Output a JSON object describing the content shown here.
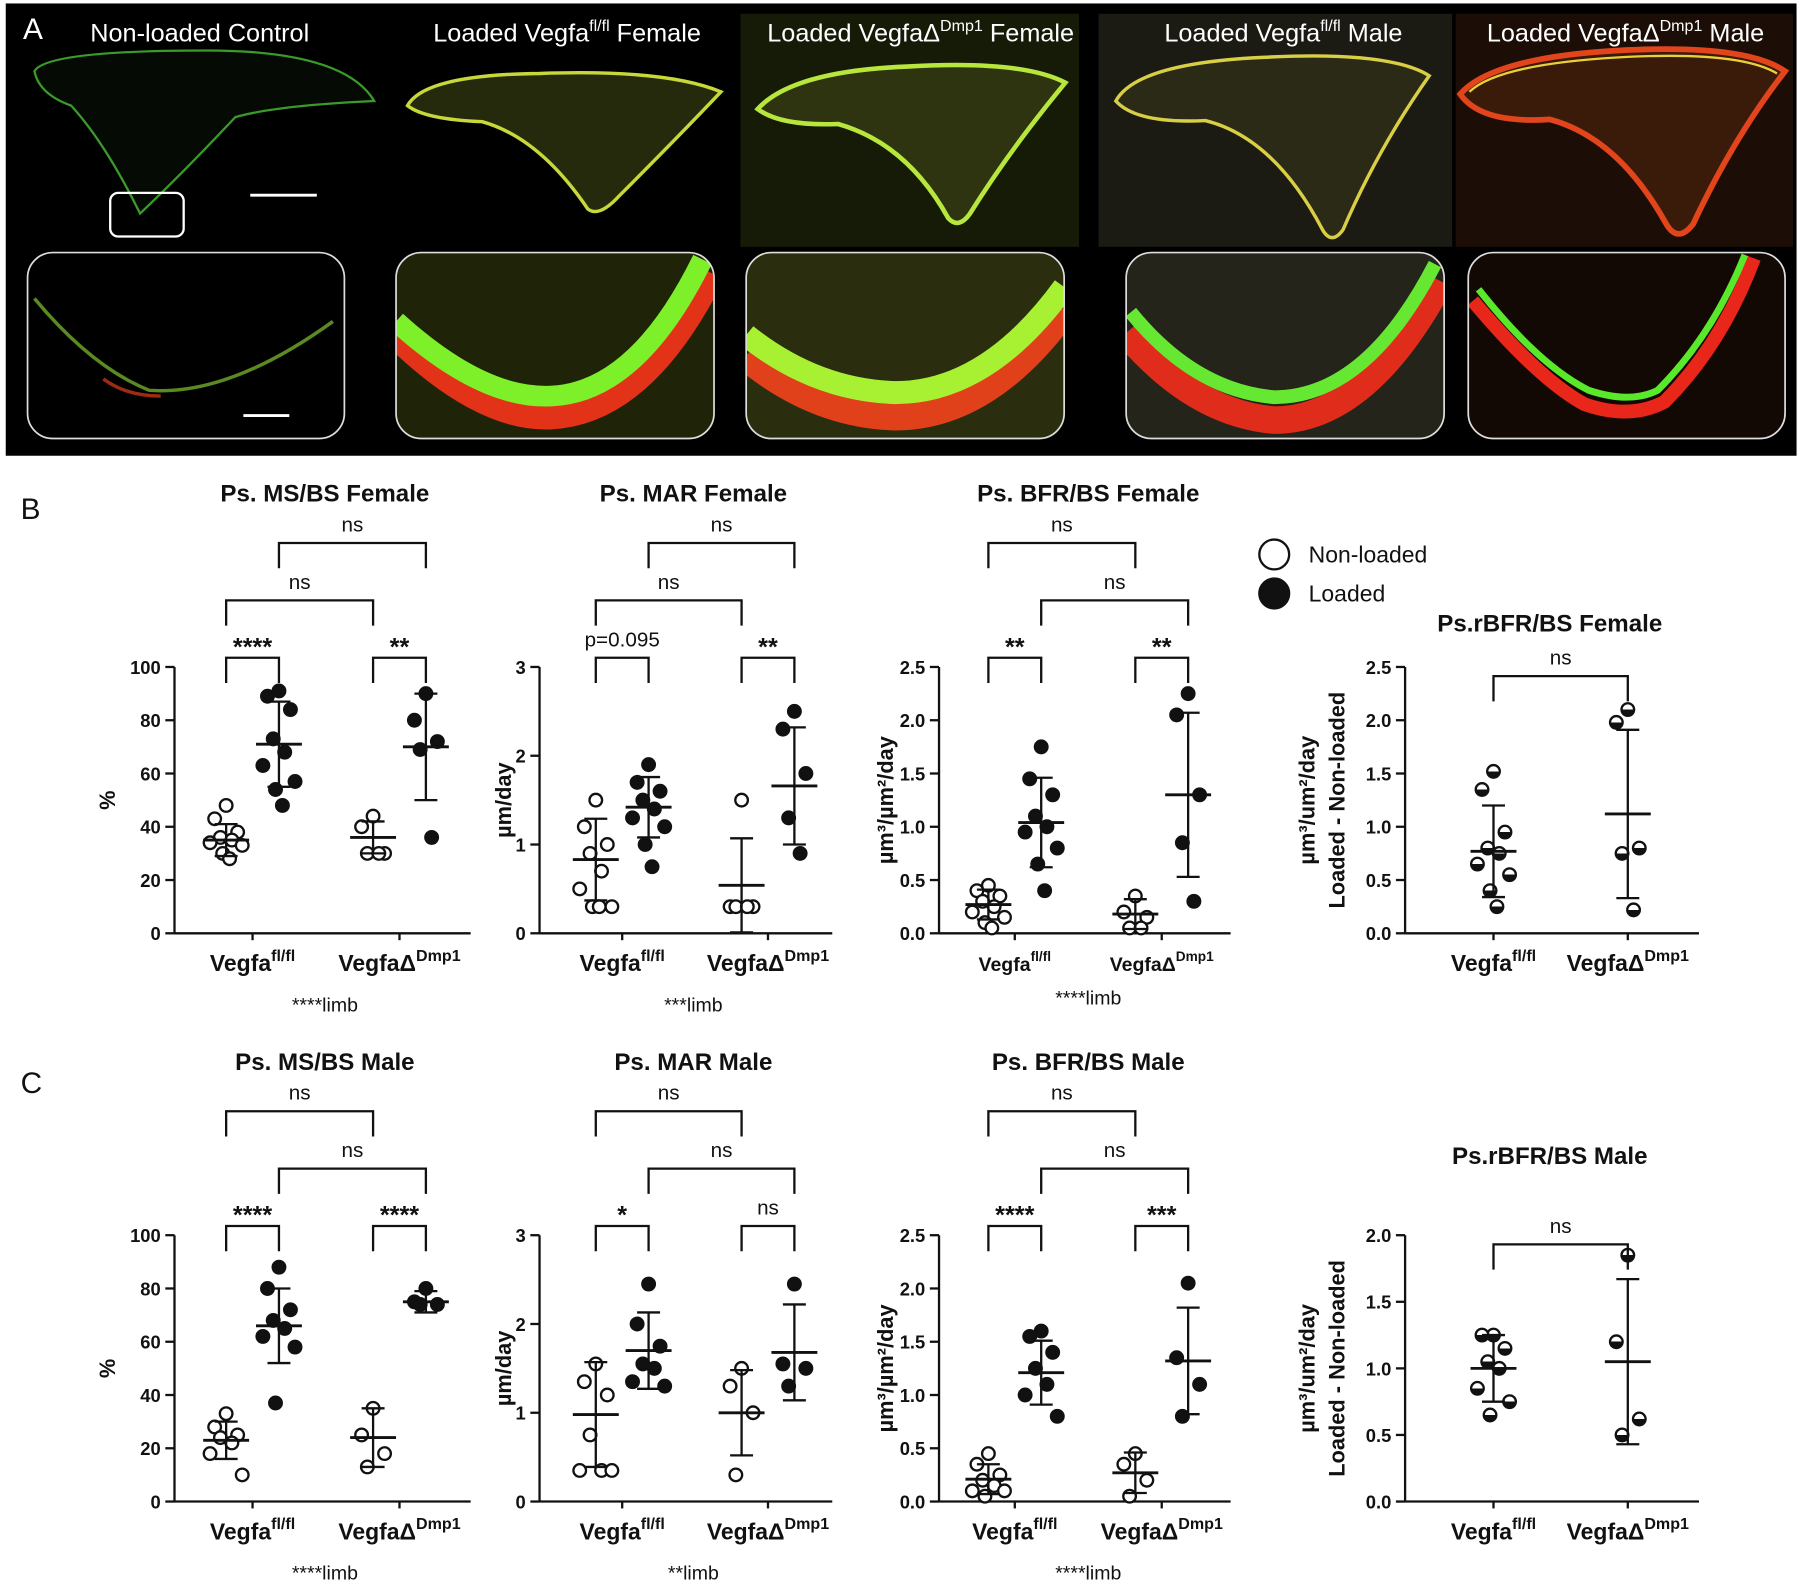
{
  "panel_a": {
    "label": "A",
    "titles": [
      {
        "main": "Non-loaded Control"
      },
      {
        "main": "Loaded Vegfa",
        "sup": "fl/fl",
        "tail": " Female"
      },
      {
        "main": "Loaded VegfaΔ",
        "sup": "Dmp1",
        "tail": " Female"
      },
      {
        "main": "Loaded Vegfa",
        "sup": "fl/fl",
        "tail": " Male"
      },
      {
        "main": "Loaded VegfaΔ",
        "sup": "Dmp1",
        "tail": " Male"
      }
    ]
  },
  "panel_labels": [
    "B",
    "C"
  ],
  "legend": [
    {
      "label": "Non-loaded",
      "style": "open"
    },
    {
      "label": "Loaded",
      "style": "filled"
    }
  ],
  "chart_data": [
    {
      "type": "dot",
      "title": "Ps. MS/BS  Female",
      "ylabel": [
        "%"
      ],
      "categories": [
        "Vegfa",
        "VegfaΔ"
      ],
      "category_superscripts": [
        "fl/fl",
        "Dmp1"
      ],
      "ylim": [
        0,
        100
      ],
      "yticks": [
        0,
        20,
        40,
        60,
        80,
        100
      ],
      "series": [
        {
          "style": "open",
          "values": [
            [
              48,
              43,
              38,
              36,
              35,
              34,
              33,
              30,
              28
            ],
            [
              44,
              40,
              30,
              30,
              30
            ]
          ],
          "mean": [
            35,
            36
          ],
          "sd": [
            6,
            6
          ]
        },
        {
          "style": "filled",
          "values": [
            [
              91,
              89,
              84,
              73,
              68,
              63,
              57,
              54,
              48
            ],
            [
              90,
              80,
              72,
              69,
              36
            ]
          ],
          "mean": [
            71,
            70
          ],
          "sd": [
            16,
            20
          ]
        }
      ],
      "comparisons": [
        {
          "a": [
            0,
            0
          ],
          "b": [
            0,
            1
          ],
          "label": "****"
        },
        {
          "a": [
            1,
            0
          ],
          "b": [
            1,
            1
          ],
          "label": "**"
        },
        {
          "a": [
            0,
            0
          ],
          "b": [
            1,
            0
          ],
          "label": "ns"
        },
        {
          "a": [
            0,
            1
          ],
          "b": [
            1,
            1
          ],
          "label": "ns"
        }
      ],
      "footnote": "****limb"
    },
    {
      "type": "dot",
      "title": "Ps. MAR Female",
      "ylabel": [
        "µm/day"
      ],
      "categories": [
        "Vegfa",
        "VegfaΔ"
      ],
      "category_superscripts": [
        "fl/fl",
        "Dmp1"
      ],
      "ylim": [
        0,
        3
      ],
      "yticks": [
        0,
        1,
        2,
        3
      ],
      "series": [
        {
          "style": "open",
          "values": [
            [
              1.5,
              1.2,
              1.0,
              0.9,
              0.7,
              0.5,
              0.3,
              0.3,
              0.3
            ],
            [
              1.5,
              0.3,
              0.3,
              0.3,
              0.3
            ]
          ],
          "mean": [
            0.83,
            0.54
          ],
          "sd": [
            0.46,
            0.53
          ]
        },
        {
          "style": "filled",
          "values": [
            [
              1.9,
              1.7,
              1.6,
              1.5,
              1.4,
              1.3,
              1.2,
              1.0,
              0.75
            ],
            [
              2.5,
              2.3,
              1.8,
              1.3,
              0.9
            ]
          ],
          "mean": [
            1.42,
            1.66
          ],
          "sd": [
            0.34,
            0.66
          ]
        }
      ],
      "comparisons": [
        {
          "a": [
            0,
            0
          ],
          "b": [
            0,
            1
          ],
          "label": "p=0.095"
        },
        {
          "a": [
            1,
            0
          ],
          "b": [
            1,
            1
          ],
          "label": "**"
        },
        {
          "a": [
            0,
            0
          ],
          "b": [
            1,
            0
          ],
          "label": "ns"
        },
        {
          "a": [
            0,
            1
          ],
          "b": [
            1,
            1
          ],
          "label": "ns"
        }
      ],
      "footnote": "***limb"
    },
    {
      "type": "dot",
      "title": "Ps. BFR/BS Female",
      "ylabel": [
        "µm³/µm²/day"
      ],
      "categories": [
        "Vegfa",
        "VegfaΔ"
      ],
      "category_superscripts": [
        "fl/fl",
        "Dmp1"
      ],
      "ylim": [
        0,
        2.5
      ],
      "yticks": [
        {
          "value": 0,
          "label": "0.0"
        },
        0.5,
        {
          "value": 1,
          "label": "1.0"
        },
        1.5,
        {
          "value": 2,
          "label": "2.0"
        },
        2.5
      ],
      "series": [
        {
          "style": "open",
          "values": [
            [
              0.45,
              0.4,
              0.35,
              0.3,
              0.25,
              0.2,
              0.15,
              0.1,
              0.05
            ],
            [
              0.35,
              0.2,
              0.15,
              0.05,
              0.05
            ]
          ],
          "mean": [
            0.27,
            0.18
          ],
          "sd": [
            0.14,
            0.14
          ]
        },
        {
          "style": "filled",
          "values": [
            [
              1.75,
              1.45,
              1.3,
              1.1,
              1.0,
              0.95,
              0.8,
              0.65,
              0.4
            ],
            [
              2.25,
              2.05,
              1.3,
              0.85,
              0.3
            ]
          ],
          "mean": [
            1.04,
            1.3
          ],
          "sd": [
            0.42,
            0.77
          ]
        }
      ],
      "comparisons": [
        {
          "a": [
            0,
            0
          ],
          "b": [
            0,
            1
          ],
          "label": "**"
        },
        {
          "a": [
            1,
            0
          ],
          "b": [
            1,
            1
          ],
          "label": "**"
        },
        {
          "a": [
            0,
            1
          ],
          "b": [
            1,
            1
          ],
          "label": "ns"
        },
        {
          "a": [
            0,
            0
          ],
          "b": [
            1,
            0
          ],
          "label": "ns"
        }
      ],
      "footnote": "****limb"
    },
    {
      "type": "dot",
      "title": "Ps.rBFR/BS Female",
      "ylabel": [
        "µm³/um²/day",
        "Loaded - Non-loaded"
      ],
      "categories": [
        "Vegfa",
        "VegfaΔ"
      ],
      "category_superscripts": [
        "fl/fl",
        "Dmp1"
      ],
      "ylim": [
        0,
        2.5
      ],
      "yticks": [
        {
          "value": 0,
          "label": "0.0"
        },
        0.5,
        {
          "value": 1,
          "label": "1.0"
        },
        1.5,
        {
          "value": 2,
          "label": "2.0"
        },
        2.5
      ],
      "series": [
        {
          "style": "half",
          "values": [
            [
              1.52,
              1.35,
              0.95,
              0.8,
              0.75,
              0.65,
              0.55,
              0.4,
              0.25
            ],
            [
              2.1,
              1.98,
              0.8,
              0.75,
              0.22
            ]
          ],
          "mean": [
            0.77,
            1.12
          ],
          "sd": [
            0.43,
            0.79
          ]
        }
      ],
      "comparisons": [
        {
          "a": [
            0,
            0
          ],
          "b": [
            1,
            0
          ],
          "label": "ns"
        }
      ]
    },
    {
      "type": "dot",
      "title": "Ps. MS/BS  Male",
      "ylabel": [
        "%"
      ],
      "categories": [
        "Vegfa",
        "VegfaΔ"
      ],
      "category_superscripts": [
        "fl/fl",
        "Dmp1"
      ],
      "ylim": [
        0,
        100
      ],
      "yticks": [
        0,
        20,
        40,
        60,
        80,
        100
      ],
      "series": [
        {
          "style": "open",
          "values": [
            [
              33,
              28,
              25,
              24,
              22,
              18,
              10
            ],
            [
              35,
              25,
              18,
              13
            ]
          ],
          "mean": [
            23,
            24
          ],
          "sd": [
            7,
            11
          ]
        },
        {
          "style": "filled",
          "values": [
            [
              88,
              80,
              72,
              68,
              65,
              62,
              58,
              37
            ],
            [
              80,
              75,
              74,
              74
            ]
          ],
          "mean": [
            66,
            75
          ],
          "sd": [
            14,
            4
          ]
        }
      ],
      "comparisons": [
        {
          "a": [
            0,
            0
          ],
          "b": [
            0,
            1
          ],
          "label": "****"
        },
        {
          "a": [
            1,
            0
          ],
          "b": [
            1,
            1
          ],
          "label": "****"
        },
        {
          "a": [
            0,
            1
          ],
          "b": [
            1,
            1
          ],
          "label": "ns"
        },
        {
          "a": [
            0,
            0
          ],
          "b": [
            1,
            0
          ],
          "label": "ns"
        }
      ],
      "footnote": "****limb"
    },
    {
      "type": "dot",
      "title": "Ps. MAR Male",
      "ylabel": [
        "µm/day"
      ],
      "categories": [
        "Vegfa",
        "VegfaΔ"
      ],
      "category_superscripts": [
        "fl/fl",
        "Dmp1"
      ],
      "ylim": [
        0,
        3
      ],
      "yticks": [
        0,
        1,
        2,
        3
      ],
      "series": [
        {
          "style": "open",
          "values": [
            [
              1.55,
              1.35,
              1.2,
              0.75,
              0.35,
              0.35,
              0.35
            ],
            [
              1.5,
              1.3,
              1.0,
              0.3
            ]
          ],
          "mean": [
            0.98,
            1.0
          ],
          "sd": [
            0.59,
            0.48
          ]
        },
        {
          "style": "filled",
          "values": [
            [
              2.45,
              2.0,
              1.75,
              1.55,
              1.5,
              1.35,
              1.3
            ],
            [
              2.45,
              1.55,
              1.5,
              1.3
            ]
          ],
          "mean": [
            1.7,
            1.68
          ],
          "sd": [
            0.43,
            0.54
          ]
        }
      ],
      "comparisons": [
        {
          "a": [
            0,
            0
          ],
          "b": [
            0,
            1
          ],
          "label": "*"
        },
        {
          "a": [
            1,
            0
          ],
          "b": [
            1,
            1
          ],
          "label": "ns"
        },
        {
          "a": [
            0,
            1
          ],
          "b": [
            1,
            1
          ],
          "label": "ns"
        },
        {
          "a": [
            0,
            0
          ],
          "b": [
            1,
            0
          ],
          "label": "ns"
        }
      ],
      "footnote": "**limb"
    },
    {
      "type": "dot",
      "title": "Ps. BFR/BS Male",
      "ylabel": [
        "µm³/µm²/day"
      ],
      "categories": [
        "Vegfa",
        "VegfaΔ"
      ],
      "category_superscripts": [
        "fl/fl",
        "Dmp1"
      ],
      "ylim": [
        0,
        2.5
      ],
      "yticks": [
        {
          "value": 0,
          "label": "0.0"
        },
        0.5,
        {
          "value": 1,
          "label": "1.0"
        },
        1.5,
        {
          "value": 2,
          "label": "2.0"
        },
        2.5
      ],
      "series": [
        {
          "style": "open",
          "values": [
            [
              0.45,
              0.35,
              0.25,
              0.2,
              0.15,
              0.1,
              0.1,
              0.05
            ],
            [
              0.45,
              0.35,
              0.2,
              0.05
            ]
          ],
          "mean": [
            0.21,
            0.27
          ],
          "sd": [
            0.14,
            0.19
          ]
        },
        {
          "style": "filled",
          "values": [
            [
              1.6,
              1.55,
              1.4,
              1.25,
              1.1,
              1.0,
              0.8
            ],
            [
              2.05,
              1.35,
              1.1,
              0.8
            ]
          ],
          "mean": [
            1.21,
            1.32
          ],
          "sd": [
            0.3,
            0.5
          ]
        }
      ],
      "comparisons": [
        {
          "a": [
            0,
            0
          ],
          "b": [
            0,
            1
          ],
          "label": "****"
        },
        {
          "a": [
            1,
            0
          ],
          "b": [
            1,
            1
          ],
          "label": "***"
        },
        {
          "a": [
            0,
            1
          ],
          "b": [
            1,
            1
          ],
          "label": "ns"
        },
        {
          "a": [
            0,
            0
          ],
          "b": [
            1,
            0
          ],
          "label": "ns"
        }
      ],
      "footnote": "****limb"
    },
    {
      "type": "dot",
      "title": "Ps.rBFR/BS Male",
      "ylabel": [
        "µm³/um²/day",
        "Loaded - Non-loaded"
      ],
      "categories": [
        "Vegfa",
        "VegfaΔ"
      ],
      "category_superscripts": [
        "fl/fl",
        "Dmp1"
      ],
      "ylim": [
        0,
        2
      ],
      "yticks": [
        {
          "value": 0,
          "label": "0.0"
        },
        0.5,
        {
          "value": 1,
          "label": "1.0"
        },
        1.5,
        {
          "value": 2,
          "label": "2.0"
        }
      ],
      "series": [
        {
          "style": "half",
          "values": [
            [
              1.25,
              1.25,
              1.15,
              1.05,
              1.0,
              0.85,
              0.75,
              0.65
            ],
            [
              1.85,
              1.2,
              0.62,
              0.5
            ]
          ],
          "mean": [
            1.0,
            1.05
          ],
          "sd": [
            0.25,
            0.62
          ]
        }
      ],
      "comparisons": [
        {
          "a": [
            0,
            0
          ],
          "b": [
            1,
            0
          ],
          "label": "ns"
        }
      ]
    }
  ]
}
